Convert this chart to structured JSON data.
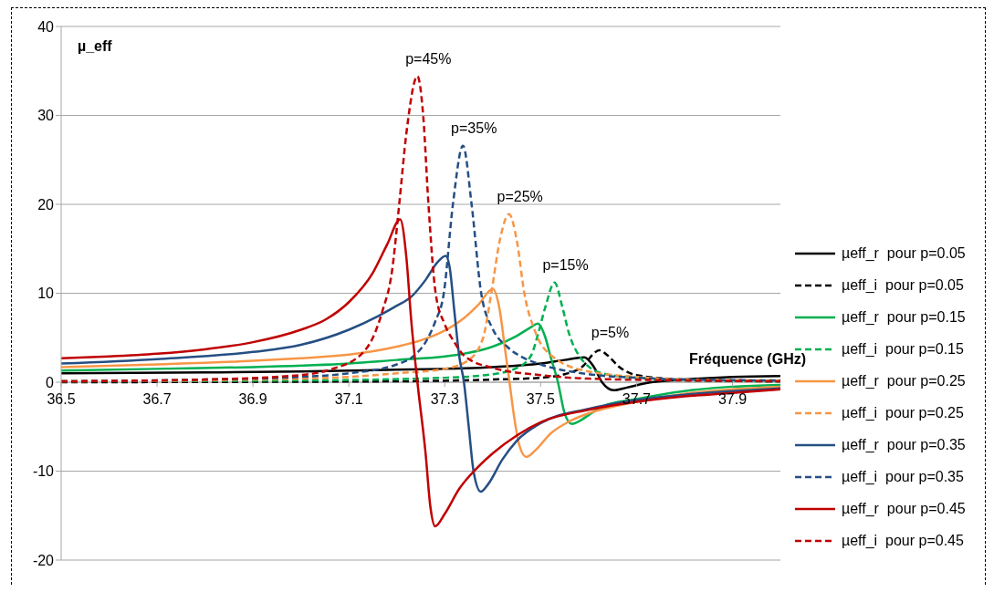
{
  "chart_data": {
    "type": "line",
    "xlabel": "Fréquence (GHz)",
    "ylabel": "µ_eff",
    "xlim": [
      36.5,
      38.0
    ],
    "xticks": [
      36.5,
      36.7,
      36.9,
      37.1,
      37.3,
      37.5,
      37.7,
      37.9
    ],
    "ylim": [
      -20,
      40
    ],
    "yticks": [
      -20,
      -10,
      0,
      10,
      20,
      30,
      40
    ],
    "grid": "y",
    "legend": "right",
    "annotations": [
      "p=45%",
      "p=35%",
      "p=25%",
      "p=15%",
      "p=5%"
    ],
    "series": [
      {
        "name": "µeff_r  pour p=0.05",
        "color": "#000000",
        "line_style": "solid",
        "x": [
          36.5,
          36.8,
          37.0,
          37.2,
          37.3,
          37.4,
          37.5,
          37.55,
          37.591,
          37.61,
          37.628,
          37.652,
          37.68,
          37.72,
          37.8,
          37.9,
          38.0
        ],
        "values": [
          1.0,
          1.1,
          1.2,
          1.4,
          1.5,
          1.7,
          2.1,
          2.5,
          2.8,
          1.8,
          0,
          -0.9,
          -0.6,
          -0.1,
          0.3,
          0.6,
          0.7
        ]
      },
      {
        "name": "µeff_i  pour p=0.05",
        "color": "#000000",
        "line_style": "dashed",
        "x": [
          36.5,
          37.2,
          37.4,
          37.5,
          37.55,
          37.59,
          37.61,
          37.622,
          37.64,
          37.662,
          37.7,
          37.8,
          38.0
        ],
        "values": [
          0,
          0.1,
          0.3,
          0.5,
          0.9,
          1.9,
          3.2,
          3.6,
          3.0,
          1.8,
          0.8,
          0.3,
          0.1
        ]
      },
      {
        "name": "µeff_r  pour p=0.15",
        "color": "#00b050",
        "line_style": "solid",
        "x": [
          36.5,
          36.7,
          36.9,
          37.1,
          37.2,
          37.3,
          37.35,
          37.4,
          37.45,
          37.48,
          37.494,
          37.51,
          37.52,
          37.536,
          37.55,
          37.565,
          37.58,
          37.6,
          37.63,
          37.7,
          37.8,
          37.9,
          38.0
        ],
        "values": [
          1.3,
          1.5,
          1.7,
          2.1,
          2.5,
          2.9,
          3.3,
          4.0,
          5.2,
          6.2,
          6.6,
          5,
          3,
          0,
          -3.5,
          -4.7,
          -4.4,
          -3.7,
          -2.7,
          -1.9,
          -1.0,
          -0.5,
          -0.3
        ]
      },
      {
        "name": "µeff_i  pour p=0.15",
        "color": "#00b050",
        "line_style": "dashed",
        "x": [
          36.5,
          37.0,
          37.3,
          37.4,
          37.45,
          37.48,
          37.495,
          37.51,
          37.529,
          37.545,
          37.559,
          37.58,
          37.628,
          37.7,
          37.8,
          38.0
        ],
        "values": [
          0.1,
          0.2,
          0.5,
          0.9,
          1.6,
          3,
          5.5,
          8.5,
          11.2,
          8.5,
          5.5,
          3,
          1,
          0.5,
          0.2,
          0.1
        ]
      },
      {
        "name": "µeff_r  pour p=0.25",
        "color": "#f79646",
        "line_style": "solid",
        "x": [
          36.5,
          36.7,
          36.9,
          37.0,
          37.1,
          37.2,
          37.25,
          37.3,
          37.34,
          37.37,
          37.4,
          37.415,
          37.425,
          37.435,
          37.445,
          37.455,
          37.47,
          37.49,
          37.52,
          37.56,
          37.6,
          37.7,
          37.8,
          37.9,
          38.0
        ],
        "values": [
          1.7,
          2.0,
          2.4,
          2.7,
          3.1,
          4.0,
          4.7,
          5.8,
          7.2,
          8.7,
          10.5,
          8,
          4,
          0,
          -4,
          -7,
          -8.4,
          -7.6,
          -5.8,
          -4.4,
          -3.5,
          -2.2,
          -1.3,
          -0.8,
          -0.5
        ]
      },
      {
        "name": "µeff_i  pour p=0.25",
        "color": "#f79646",
        "line_style": "dashed",
        "x": [
          36.5,
          36.9,
          37.1,
          37.2,
          37.3,
          37.35,
          37.38,
          37.397,
          37.415,
          37.434,
          37.45,
          37.466,
          37.49,
          37.527,
          37.6,
          37.7,
          37.8,
          38.0
        ],
        "values": [
          0.1,
          0.3,
          0.6,
          1.0,
          1.5,
          2.5,
          5,
          10,
          16,
          18.9,
          16,
          10,
          5.5,
          2.8,
          1.2,
          0.6,
          0.3,
          0.2
        ]
      },
      {
        "name": "µeff_r  pour p=0.35",
        "color": "#254f84",
        "line_style": "solid",
        "x": [
          36.5,
          36.7,
          36.9,
          37.0,
          37.1,
          37.16,
          37.2,
          37.23,
          37.26,
          37.285,
          37.302,
          37.31,
          37.32,
          37.33,
          37.34,
          37.35,
          37.36,
          37.375,
          37.39,
          37.42,
          37.45,
          37.5,
          37.6,
          37.7,
          37.8,
          37.9,
          38.0
        ],
        "values": [
          2.1,
          2.6,
          3.4,
          4.2,
          5.9,
          7.4,
          8.6,
          9.6,
          11.5,
          13.5,
          14.2,
          13,
          8,
          3,
          0,
          -5,
          -10,
          -12.3,
          -11.5,
          -8.7,
          -6.6,
          -4.6,
          -3.0,
          -2.0,
          -1.4,
          -1.0,
          -0.7
        ]
      },
      {
        "name": "µeff_i  pour p=0.35",
        "color": "#254f84",
        "line_style": "dashed",
        "x": [
          36.5,
          36.8,
          37.0,
          37.1,
          37.2,
          37.234,
          37.26,
          37.28,
          37.298,
          37.317,
          37.338,
          37.356,
          37.376,
          37.4,
          37.43,
          37.462,
          37.5,
          37.6,
          37.7,
          37.8,
          38.0
        ],
        "values": [
          0.1,
          0.3,
          0.6,
          1.0,
          2.0,
          2.9,
          4.5,
          6.8,
          10,
          20,
          26.6,
          20,
          10,
          6,
          4,
          2.8,
          2,
          0.9,
          0.5,
          0.3,
          0.2
        ]
      },
      {
        "name": "µeff_r  pour p=0.45",
        "color": "#c00000",
        "line_style": "solid",
        "x": [
          36.5,
          36.6,
          36.7,
          36.8,
          36.9,
          37.0,
          37.05,
          37.1,
          37.15,
          37.18,
          37.207,
          37.22,
          37.23,
          37.243,
          37.26,
          37.27,
          37.28,
          37.3,
          37.33,
          37.37,
          37.4,
          37.45,
          37.5,
          37.6,
          37.7,
          37.8,
          37.9,
          38.0
        ],
        "values": [
          2.7,
          2.9,
          3.2,
          3.7,
          4.5,
          5.9,
          7.0,
          9.0,
          12.3,
          15.5,
          18.3,
          14,
          7,
          0,
          -8,
          -14,
          -16.2,
          -14.8,
          -12,
          -9.5,
          -8,
          -6,
          -4.5,
          -3.1,
          -2.2,
          -1.6,
          -1.2,
          -0.8
        ]
      },
      {
        "name": "µeff_i  pour p=0.45",
        "color": "#c00000",
        "line_style": "dashed",
        "x": [
          36.5,
          36.8,
          37.0,
          37.06,
          37.127,
          37.15,
          37.17,
          37.19,
          37.205,
          37.22,
          37.243,
          37.255,
          37.266,
          37.281,
          37.3,
          37.32,
          37.34,
          37.4,
          37.5,
          37.6,
          37.8,
          38.0
        ],
        "values": [
          0.1,
          0.3,
          0.8,
          1.4,
          3.2,
          5,
          8,
          12.5,
          20,
          28,
          34.4,
          30,
          20,
          10,
          6.5,
          4.5,
          3,
          1.6,
          0.8,
          0.4,
          0.2,
          0.1
        ]
      }
    ]
  }
}
